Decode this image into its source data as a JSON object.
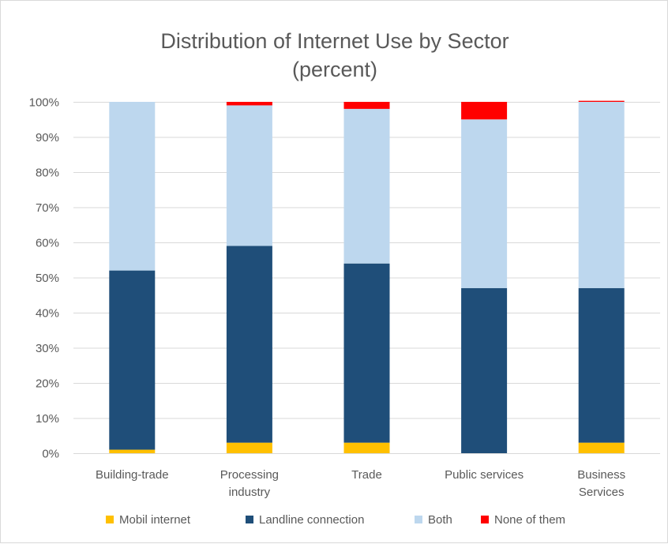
{
  "chart_data": {
    "type": "bar",
    "stacked": true,
    "title_lines": [
      "Distribution of Internet Use by Sector",
      "(percent)"
    ],
    "categories": [
      [
        "Building-trade"
      ],
      [
        "Processing",
        "industry"
      ],
      [
        "Trade"
      ],
      [
        "Public services"
      ],
      [
        "Business",
        "Services"
      ]
    ],
    "series": [
      {
        "name": "Mobil internet",
        "color": "#FFC000",
        "values": [
          1,
          3,
          3,
          0,
          3
        ]
      },
      {
        "name": "Landline connection",
        "color": "#1F4E79",
        "values": [
          51,
          56,
          51,
          47,
          44
        ]
      },
      {
        "name": "Both",
        "color": "#BDD7EE",
        "values": [
          48,
          40,
          44,
          48,
          53
        ]
      },
      {
        "name": "None of them",
        "color": "#FF0000",
        "values": [
          0,
          1,
          2,
          5,
          0.3
        ]
      }
    ],
    "ylim": [
      0,
      100
    ],
    "yticks": [
      0,
      10,
      20,
      30,
      40,
      50,
      60,
      70,
      80,
      90,
      100
    ],
    "ytick_labels": [
      "0%",
      "10%",
      "20%",
      "30%",
      "40%",
      "50%",
      "60%",
      "70%",
      "80%",
      "90%",
      "100%"
    ],
    "grid": true,
    "legend_position": "bottom"
  }
}
